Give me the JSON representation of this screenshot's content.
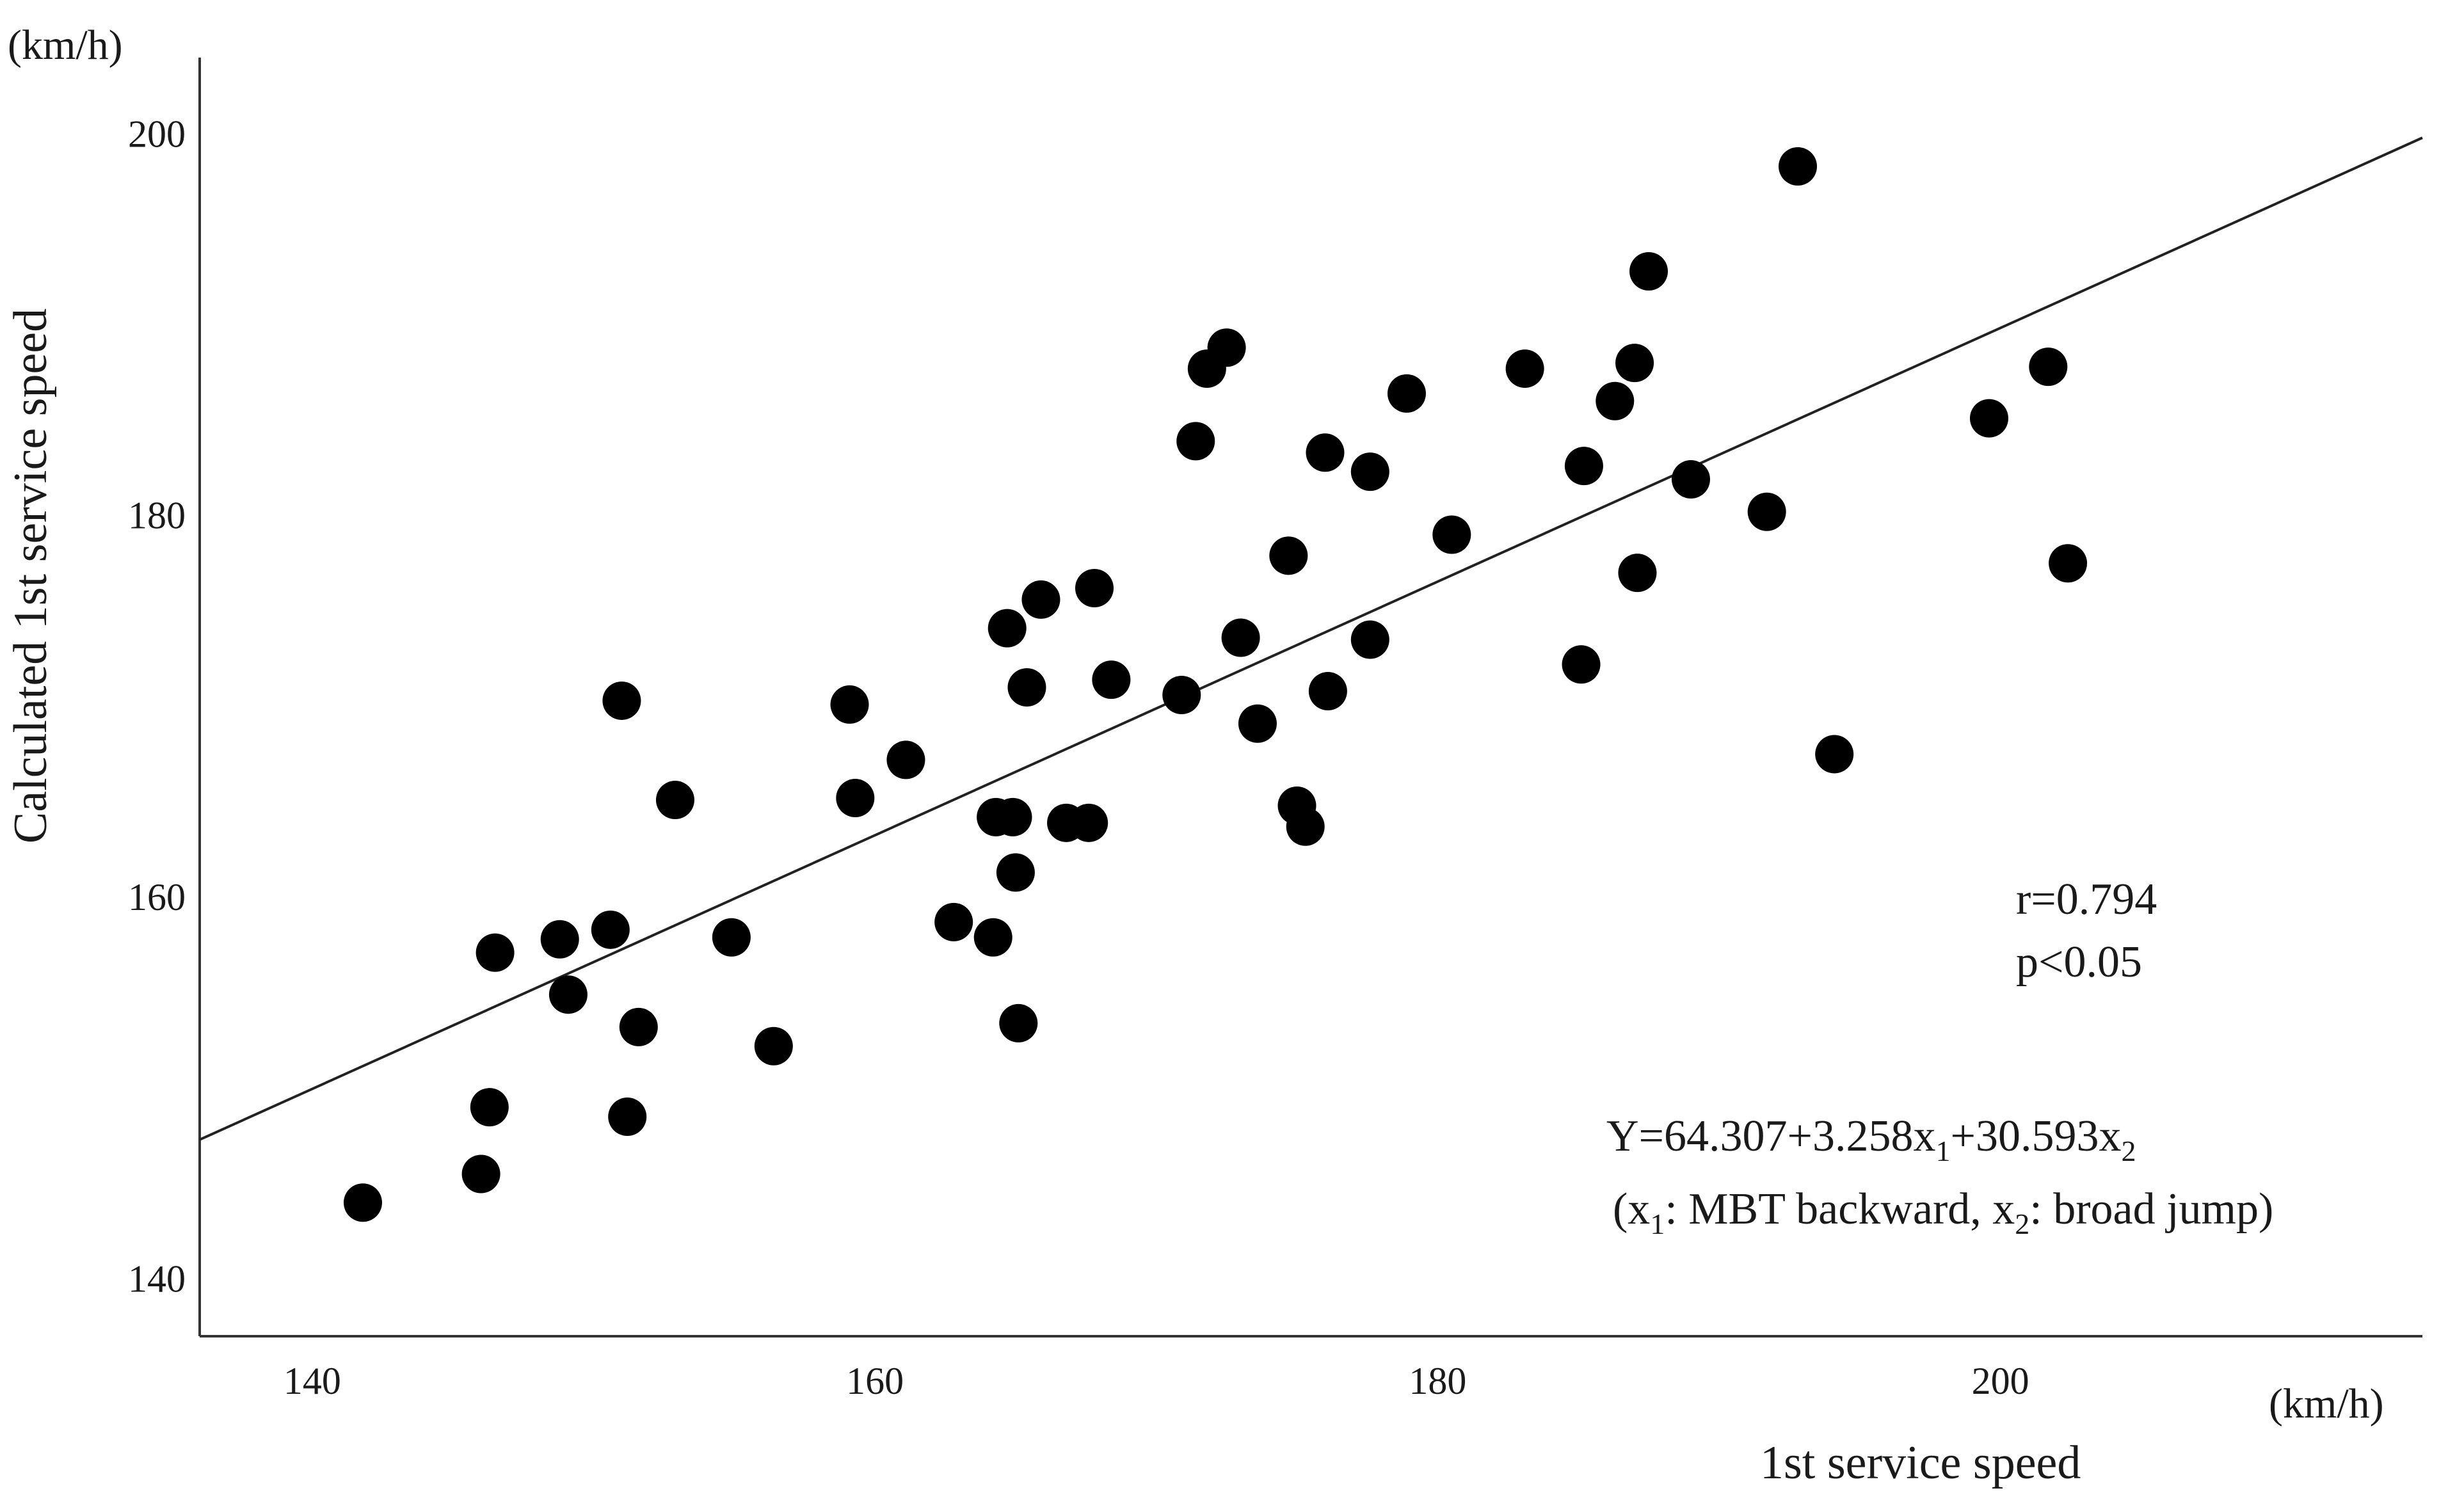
{
  "chart_data": {
    "type": "scatter",
    "title": "",
    "xlabel": "1st service speed",
    "ylabel": "Calculated 1st service speed",
    "x_unit": "(km/h)",
    "y_unit": "(km/h)",
    "xlim": [
      136,
      215
    ],
    "ylim": [
      137,
      204
    ],
    "x_ticks": [
      "140",
      "160",
      "180",
      "200"
    ],
    "y_ticks": [
      "140",
      "160",
      "180",
      "200"
    ],
    "x_tick_values": [
      140,
      160,
      180,
      200
    ],
    "y_tick_values": [
      140,
      160,
      180,
      200
    ],
    "grid": false,
    "point_color": "#000000",
    "line_color": "#222222",
    "regression_line": {
      "x": [
        136,
        215
      ],
      "y": [
        147.3,
        199.8
      ]
    },
    "annotations": {
      "r": "r=0.794",
      "p": "p<0.05",
      "eq": {
        "p1": "Y=64.307+3.258x",
        "s1": "1",
        "p2": "+30.593x",
        "s2": "2"
      },
      "vars": {
        "p1": " (x",
        "s1": "1",
        "p2": ": MBT backward, x",
        "s2": "2",
        "p3": ": broad jump)"
      }
    },
    "points": [
      {
        "x": 141.8,
        "y": 144.0
      },
      {
        "x": 146.0,
        "y": 145.5
      },
      {
        "x": 146.3,
        "y": 149.0
      },
      {
        "x": 146.5,
        "y": 157.1
      },
      {
        "x": 148.8,
        "y": 157.8
      },
      {
        "x": 149.1,
        "y": 154.9
      },
      {
        "x": 150.6,
        "y": 158.3
      },
      {
        "x": 151.0,
        "y": 170.3
      },
      {
        "x": 151.2,
        "y": 148.5
      },
      {
        "x": 151.6,
        "y": 153.2
      },
      {
        "x": 152.9,
        "y": 165.1
      },
      {
        "x": 154.9,
        "y": 157.9
      },
      {
        "x": 156.4,
        "y": 152.2
      },
      {
        "x": 159.1,
        "y": 170.1
      },
      {
        "x": 159.3,
        "y": 165.2
      },
      {
        "x": 161.1,
        "y": 167.2
      },
      {
        "x": 162.8,
        "y": 158.7
      },
      {
        "x": 164.2,
        "y": 157.9
      },
      {
        "x": 164.3,
        "y": 164.2
      },
      {
        "x": 164.7,
        "y": 174.1
      },
      {
        "x": 164.9,
        "y": 164.2
      },
      {
        "x": 165.0,
        "y": 161.3
      },
      {
        "x": 165.1,
        "y": 153.4
      },
      {
        "x": 165.4,
        "y": 171.0
      },
      {
        "x": 165.9,
        "y": 175.6
      },
      {
        "x": 166.8,
        "y": 163.9
      },
      {
        "x": 167.6,
        "y": 163.9
      },
      {
        "x": 167.8,
        "y": 176.2
      },
      {
        "x": 168.4,
        "y": 171.4
      },
      {
        "x": 170.9,
        "y": 170.6
      },
      {
        "x": 171.4,
        "y": 183.9
      },
      {
        "x": 171.8,
        "y": 187.7
      },
      {
        "x": 172.5,
        "y": 188.8
      },
      {
        "x": 173.0,
        "y": 173.6
      },
      {
        "x": 173.6,
        "y": 169.1
      },
      {
        "x": 174.7,
        "y": 177.9
      },
      {
        "x": 175.0,
        "y": 164.8
      },
      {
        "x": 175.3,
        "y": 163.7
      },
      {
        "x": 176.0,
        "y": 183.3
      },
      {
        "x": 176.1,
        "y": 170.8
      },
      {
        "x": 177.6,
        "y": 182.3
      },
      {
        "x": 177.6,
        "y": 173.5
      },
      {
        "x": 178.9,
        "y": 186.4
      },
      {
        "x": 180.5,
        "y": 179.0
      },
      {
        "x": 183.1,
        "y": 187.7
      },
      {
        "x": 185.1,
        "y": 172.2
      },
      {
        "x": 185.2,
        "y": 182.6
      },
      {
        "x": 186.3,
        "y": 186.0
      },
      {
        "x": 187.0,
        "y": 188.0
      },
      {
        "x": 187.1,
        "y": 177.0
      },
      {
        "x": 187.5,
        "y": 192.8
      },
      {
        "x": 189.0,
        "y": 181.9
      },
      {
        "x": 191.7,
        "y": 180.2
      },
      {
        "x": 192.8,
        "y": 198.3
      },
      {
        "x": 194.1,
        "y": 167.5
      },
      {
        "x": 199.6,
        "y": 185.1
      },
      {
        "x": 201.7,
        "y": 187.8
      },
      {
        "x": 202.4,
        "y": 177.5
      }
    ]
  }
}
